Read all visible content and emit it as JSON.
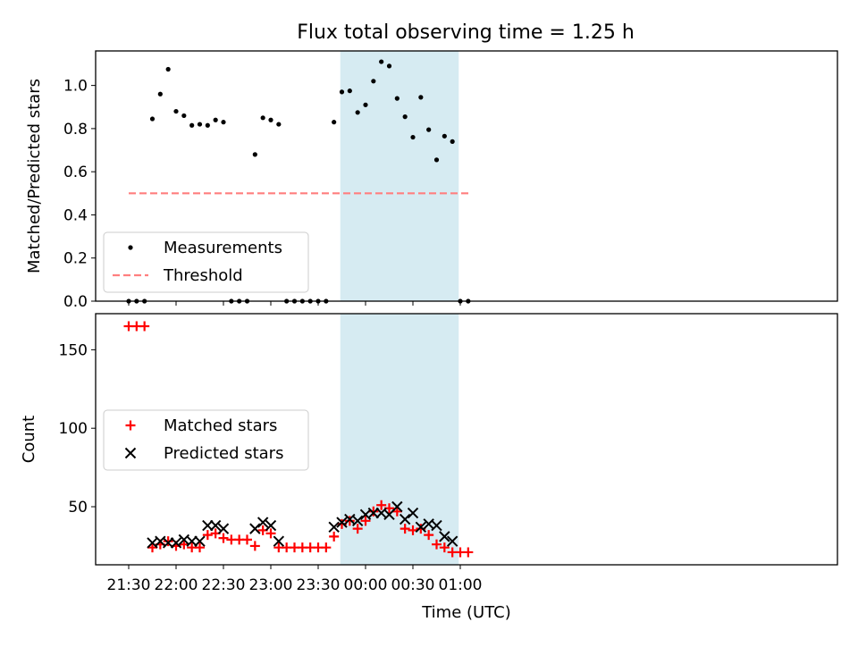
{
  "title": "Flux total observing time = 1.25 h",
  "chart_data": [
    {
      "type": "scatter",
      "ylabel": "Matched/Predicted stars",
      "xlabel": "",
      "ylim": [
        0.0,
        1.16
      ],
      "yticks": [
        "0.0",
        "0.2",
        "0.4",
        "0.6",
        "0.8",
        "1.0"
      ],
      "highlight_span_minutes": [
        134,
        209
      ],
      "legend_position": "lower-left",
      "series": [
        {
          "name": "Measurements",
          "color": "#000000",
          "marker": "dot",
          "points": [
            [
              0,
              0.0
            ],
            [
              5,
              0.0
            ],
            [
              10,
              0.0
            ],
            [
              15,
              0.845
            ],
            [
              20,
              0.96
            ],
            [
              25,
              1.075
            ],
            [
              30,
              0.88
            ],
            [
              35,
              0.86
            ],
            [
              40,
              0.815
            ],
            [
              45,
              0.82
            ],
            [
              50,
              0.815
            ],
            [
              55,
              0.84
            ],
            [
              60,
              0.83
            ],
            [
              65,
              0.0
            ],
            [
              70,
              0.0
            ],
            [
              75,
              0.0
            ],
            [
              80,
              0.68
            ],
            [
              85,
              0.85
            ],
            [
              90,
              0.84
            ],
            [
              95,
              0.82
            ],
            [
              100,
              0.0
            ],
            [
              105,
              0.0
            ],
            [
              110,
              0.0
            ],
            [
              115,
              0.0
            ],
            [
              120,
              0.0
            ],
            [
              125,
              0.0
            ],
            [
              130,
              0.83
            ],
            [
              135,
              0.97
            ],
            [
              140,
              0.975
            ],
            [
              145,
              0.875
            ],
            [
              150,
              0.91
            ],
            [
              155,
              1.02
            ],
            [
              160,
              1.11
            ],
            [
              165,
              1.09
            ],
            [
              170,
              0.94
            ],
            [
              175,
              0.855
            ],
            [
              180,
              0.76
            ],
            [
              185,
              0.945
            ],
            [
              190,
              0.795
            ],
            [
              195,
              0.655
            ],
            [
              200,
              0.765
            ],
            [
              205,
              0.74
            ],
            [
              210,
              0.0
            ],
            [
              215,
              0.0
            ]
          ]
        },
        {
          "name": "Threshold",
          "color": "#ff7f7f",
          "marker": "dashed-line",
          "points": [
            [
              0,
              0.5
            ],
            [
              216,
              0.5
            ]
          ]
        }
      ]
    },
    {
      "type": "scatter",
      "ylabel": "Count",
      "xlabel": "Time (UTC)",
      "ylim": [
        13,
        173
      ],
      "yticks": [
        "50",
        "100",
        "150"
      ],
      "xticks": [
        "21:30",
        "22:00",
        "22:30",
        "23:00",
        "23:30",
        "00:00",
        "00:30",
        "01:00"
      ],
      "highlight_span_minutes": [
        134,
        209
      ],
      "legend_position": "center-left",
      "series": [
        {
          "name": "Matched stars",
          "color": "#ff0000",
          "marker": "plus",
          "points": [
            [
              0,
              165
            ],
            [
              5,
              165
            ],
            [
              10,
              165
            ],
            [
              15,
              24
            ],
            [
              20,
              26
            ],
            [
              25,
              28
            ],
            [
              30,
              25
            ],
            [
              35,
              26
            ],
            [
              40,
              24
            ],
            [
              45,
              24
            ],
            [
              50,
              32
            ],
            [
              55,
              33
            ],
            [
              60,
              30
            ],
            [
              65,
              29
            ],
            [
              70,
              29
            ],
            [
              75,
              29
            ],
            [
              80,
              25
            ],
            [
              85,
              35
            ],
            [
              90,
              33
            ],
            [
              95,
              24
            ],
            [
              100,
              24
            ],
            [
              105,
              24
            ],
            [
              110,
              24
            ],
            [
              115,
              24
            ],
            [
              120,
              24
            ],
            [
              125,
              24
            ],
            [
              130,
              31
            ],
            [
              135,
              39
            ],
            [
              140,
              41
            ],
            [
              145,
              36
            ],
            [
              150,
              41
            ],
            [
              155,
              47
            ],
            [
              160,
              51
            ],
            [
              165,
              49
            ],
            [
              170,
              47
            ],
            [
              175,
              36
            ],
            [
              180,
              35
            ],
            [
              185,
              36
            ],
            [
              190,
              32
            ],
            [
              195,
              26
            ],
            [
              200,
              24
            ],
            [
              205,
              21
            ],
            [
              210,
              21
            ],
            [
              215,
              21
            ]
          ]
        },
        {
          "name": "Predicted stars",
          "color": "#000000",
          "marker": "x",
          "points": [
            [
              15,
              27
            ],
            [
              20,
              28
            ],
            [
              25,
              27
            ],
            [
              30,
              27
            ],
            [
              35,
              29
            ],
            [
              40,
              28
            ],
            [
              45,
              28
            ],
            [
              50,
              38
            ],
            [
              55,
              38
            ],
            [
              60,
              36
            ],
            [
              80,
              36
            ],
            [
              85,
              40
            ],
            [
              90,
              38
            ],
            [
              95,
              28
            ],
            [
              130,
              37
            ],
            [
              135,
              40
            ],
            [
              140,
              42
            ],
            [
              145,
              41
            ],
            [
              150,
              45
            ],
            [
              155,
              46
            ],
            [
              160,
              46
            ],
            [
              165,
              45
            ],
            [
              170,
              50
            ],
            [
              175,
              42
            ],
            [
              180,
              46
            ],
            [
              185,
              37
            ],
            [
              190,
              39
            ],
            [
              195,
              38
            ],
            [
              200,
              31
            ],
            [
              205,
              28
            ]
          ]
        }
      ]
    }
  ]
}
